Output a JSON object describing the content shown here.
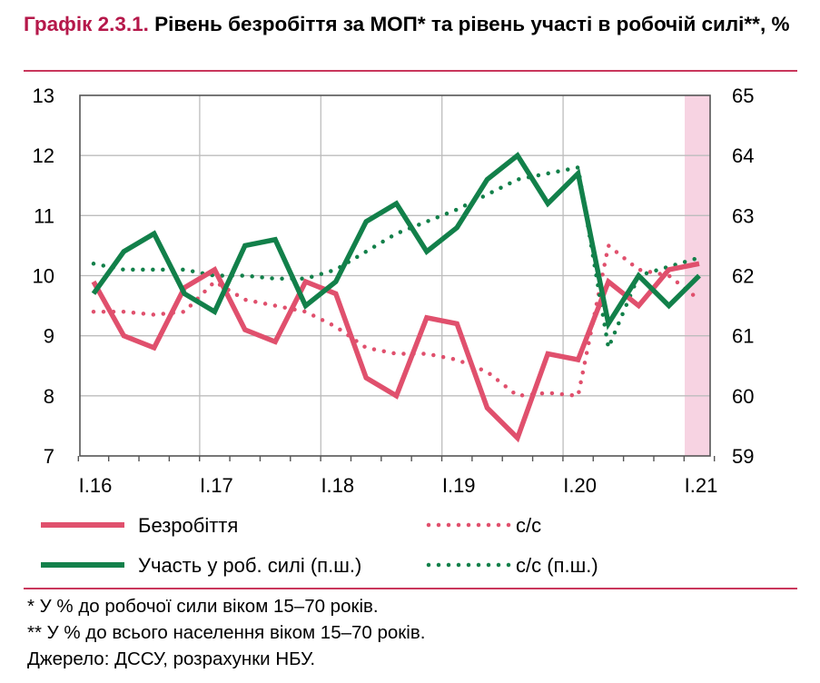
{
  "header": {
    "title_number": "Графік 2.3.1.",
    "title_text": " Рівень безробіття за МОП* та рівень участі в робочій силі**, %"
  },
  "footnotes": {
    "note1": "* У % до робочої сили віком 15–70 років.",
    "note2": "** У % до всього населення віком 15–70 років.",
    "source": "Джерело: ДССУ, розрахунки НБУ."
  },
  "chart_data": {
    "type": "line",
    "x_tick_labels": [
      "I.16",
      "I.17",
      "I.18",
      "I.19",
      "I.20",
      "I.21"
    ],
    "ylim_left": [
      7,
      13
    ],
    "ylim_right": [
      59,
      65
    ],
    "left_ticks": [
      7,
      8,
      9,
      10,
      11,
      12,
      13
    ],
    "right_ticks": [
      59,
      60,
      61,
      62,
      63,
      64,
      65
    ],
    "shaded_period": "I.21",
    "colors": {
      "unemployment": "#e0506d",
      "participation": "#12804a",
      "shade": "#f7d3e2",
      "accent": "#b5184a"
    },
    "series": [
      {
        "name": "Безробіття",
        "axis": "left",
        "style": "solid",
        "values": [
          9.9,
          9.0,
          8.8,
          9.8,
          10.1,
          9.1,
          8.9,
          9.9,
          9.7,
          8.3,
          8.0,
          9.3,
          9.2,
          7.8,
          7.3,
          8.7,
          8.6,
          9.9,
          9.5,
          10.1,
          10.2
        ]
      },
      {
        "name": "с/с",
        "axis": "left",
        "style": "dotted",
        "values": [
          9.4,
          9.4,
          9.35,
          9.4,
          9.9,
          9.6,
          9.5,
          9.4,
          9.15,
          8.8,
          8.7,
          8.7,
          8.6,
          8.4,
          8.0,
          8.05,
          8.0,
          10.5,
          10.1,
          10.0,
          9.6
        ]
      },
      {
        "name": "Участь у роб. силі (п.ш.)",
        "axis": "right",
        "style": "solid",
        "values": [
          61.7,
          62.4,
          62.7,
          61.7,
          61.4,
          62.5,
          62.6,
          61.5,
          61.9,
          62.9,
          63.2,
          62.4,
          62.8,
          63.6,
          64.0,
          63.2,
          63.7,
          61.2,
          62.0,
          61.5,
          62.0
        ]
      },
      {
        "name": "с/с (п.ш.)",
        "axis": "right",
        "style": "dotted",
        "values": [
          62.2,
          62.1,
          62.1,
          62.1,
          62.0,
          62.0,
          61.95,
          61.95,
          62.1,
          62.4,
          62.7,
          62.9,
          63.1,
          63.35,
          63.6,
          63.7,
          63.8,
          60.8,
          62.0,
          62.15,
          62.3
        ]
      }
    ]
  }
}
